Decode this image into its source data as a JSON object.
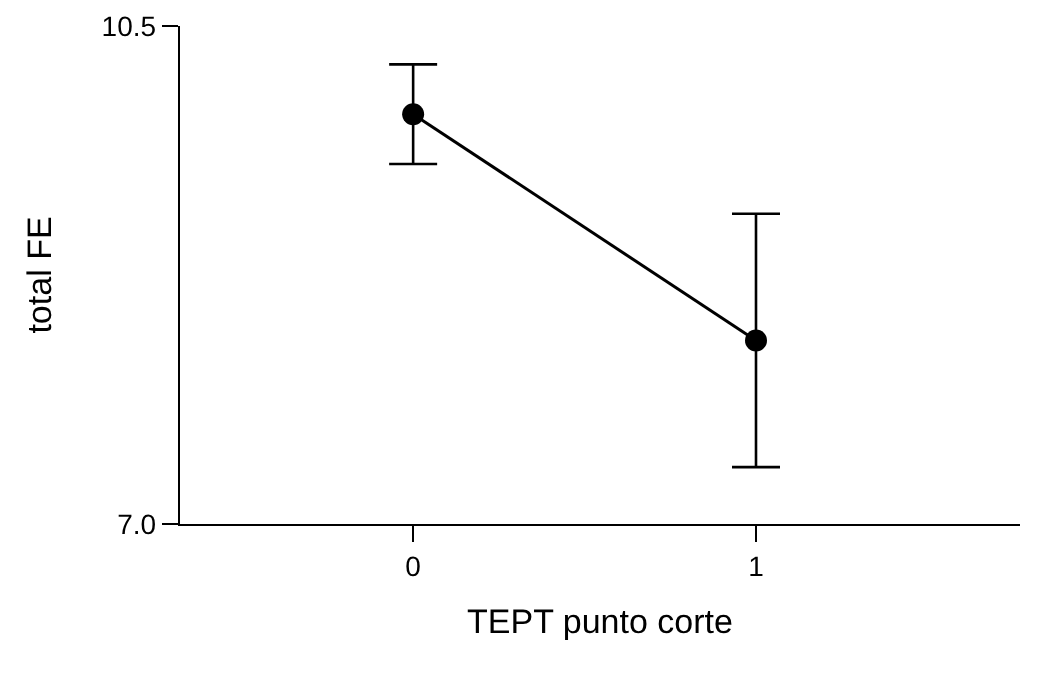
{
  "chart_data": {
    "type": "line",
    "xlabel": "TEPT punto corte",
    "ylabel": "total FE",
    "x": [
      0,
      1
    ],
    "series": [
      {
        "color": "#000000",
        "values": [
          9.88,
          8.29
        ],
        "errors": [
          0.35,
          0.89
        ]
      }
    ],
    "xlim": [
      -0.68,
      1.77
    ],
    "xticks": [
      0,
      1
    ],
    "ylim": [
      7,
      10.5
    ],
    "yticks": [
      {
        "value": 7,
        "label": "7.0"
      },
      10.5
    ],
    "grid": false,
    "marker": "circle",
    "line_style": "solid"
  }
}
